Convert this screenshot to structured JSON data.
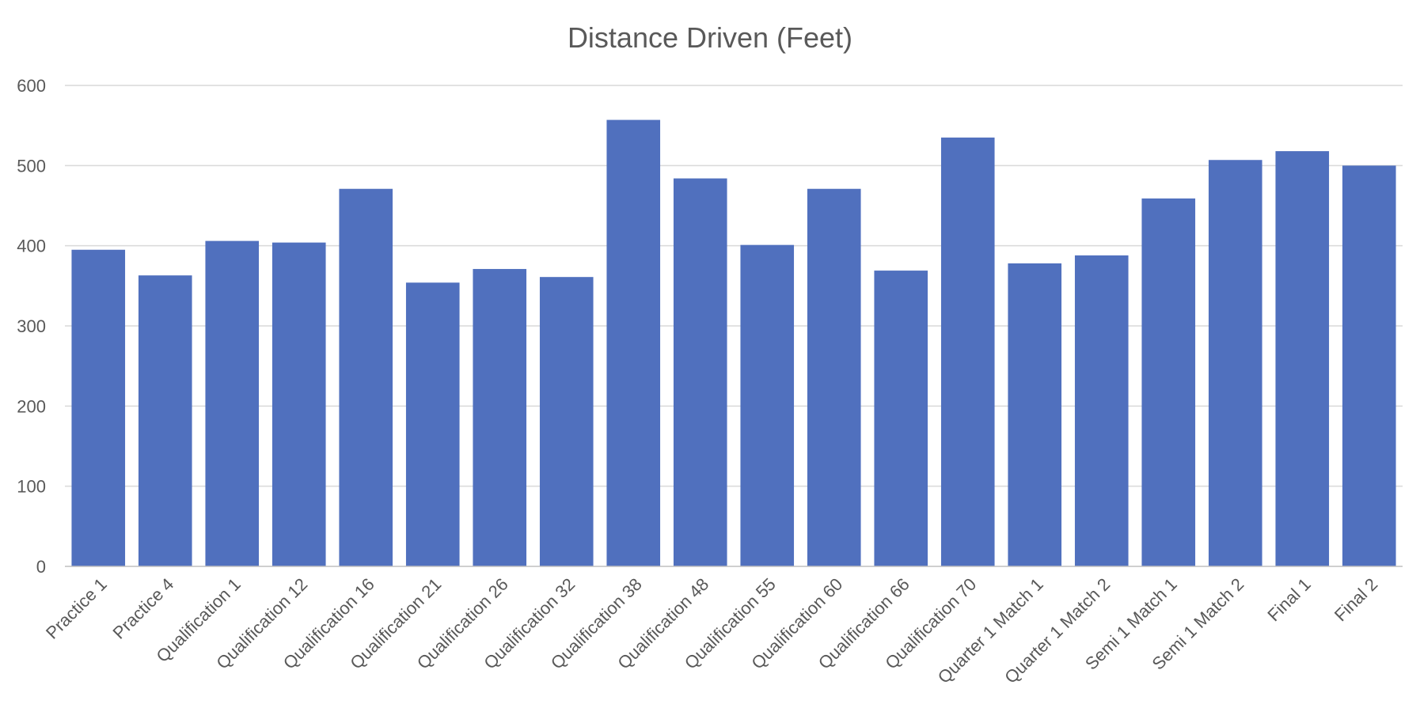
{
  "chart_data": {
    "type": "bar",
    "title": "Distance Driven (Feet)",
    "xlabel": "",
    "ylabel": "",
    "ylim": [
      0,
      600
    ],
    "yticks": [
      0,
      100,
      200,
      300,
      400,
      500,
      600
    ],
    "grid": true,
    "legend": "none",
    "bar_color": "#5070BE",
    "categories": [
      "Practice 1",
      "Practice 4",
      "Qualification 1",
      "Qualification 12",
      "Qualification 16",
      "Qualification 21",
      "Qualification 26",
      "Qualification 32",
      "Qualification 38",
      "Qualification 48",
      "Qualification 55",
      "Qualification 60",
      "Qualification 66",
      "Qualification 70",
      "Quarter 1 Match 1",
      "Quarter 1 Match 2",
      "Semi 1 Match 1",
      "Semi 1 Match 2",
      "Final 1",
      "Final 2"
    ],
    "values": [
      395,
      363,
      406,
      404,
      471,
      354,
      371,
      361,
      557,
      484,
      401,
      471,
      369,
      535,
      378,
      388,
      459,
      507,
      518,
      500
    ]
  }
}
